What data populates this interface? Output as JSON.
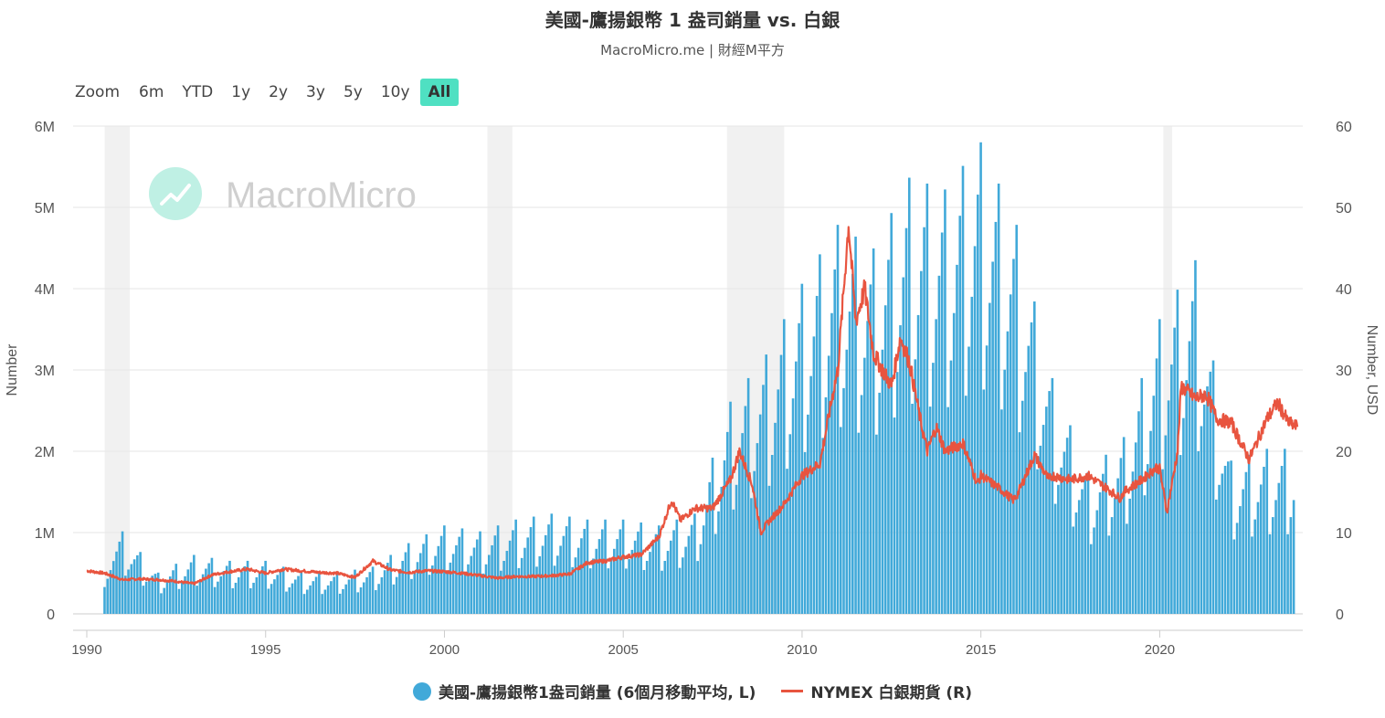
{
  "title": "美國-鷹揚銀幣 1 盎司銷量 vs. 白銀",
  "subtitle": "MacroMicro.me | 財經M平方",
  "watermark": "MacroMicro",
  "range_selector": {
    "zoom_label": "Zoom",
    "buttons": [
      "6m",
      "YTD",
      "1y",
      "2y",
      "3y",
      "5y",
      "10y",
      "All"
    ],
    "active": "All"
  },
  "chart_data": {
    "type": "bar+line",
    "x_ticks": [
      "1990",
      "1995",
      "2000",
      "2005",
      "2010",
      "2015",
      "2020"
    ],
    "xlim": [
      1990,
      2024
    ],
    "left_axis": {
      "label": "Number",
      "ticks": [
        "0",
        "1M",
        "2M",
        "3M",
        "4M",
        "5M",
        "6M"
      ],
      "range": [
        0,
        6000000
      ]
    },
    "right_axis": {
      "label": "Number, USD",
      "ticks": [
        "0",
        "10",
        "20",
        "30",
        "40",
        "50",
        "60"
      ],
      "range": [
        0,
        60
      ]
    },
    "recessions": [
      [
        1990.5,
        1991.2
      ],
      [
        2001.2,
        2001.9
      ],
      [
        2007.9,
        2009.5
      ],
      [
        2020.1,
        2020.35
      ]
    ],
    "series": [
      {
        "name": "美國-鷹揚銀幣1盎司銷量 (6個月移動平均, L)",
        "type": "bar",
        "color": "#41a9d9",
        "annual_sales": {
          "1990": 5,
          "1991": 7,
          "1992": 3.5,
          "1993": 5,
          "1994": 4.5,
          "1995": 4.5,
          "1996": 3.5,
          "1997": 3.5,
          "1998": 4,
          "1999": 6,
          "2000": 7.5,
          "2001": 7,
          "2002": 8,
          "2003": 8.5,
          "2004": 8,
          "2005": 8,
          "2006": 7.5,
          "2007": 8.5,
          "2008": 18,
          "2009": 22,
          "2010": 28,
          "2011": 33,
          "2012": 31,
          "2013": 37,
          "2014": 36,
          "2015": 40,
          "2016": 33,
          "2017": 20,
          "2018": 12,
          "2019": 15,
          "2020": 25,
          "2021": 30,
          "2022": 13,
          "2023": 14
        }
      },
      {
        "name": "NYMEX 白銀期貨 (R)",
        "type": "line",
        "color": "#e8543f",
        "points": [
          [
            1990.0,
            5.3
          ],
          [
            1990.5,
            5.0
          ],
          [
            1991.0,
            4.2
          ],
          [
            1991.5,
            4.3
          ],
          [
            1992.0,
            4.2
          ],
          [
            1992.5,
            4.0
          ],
          [
            1993.0,
            3.7
          ],
          [
            1993.5,
            4.8
          ],
          [
            1994.0,
            5.2
          ],
          [
            1994.5,
            5.5
          ],
          [
            1995.0,
            5.0
          ],
          [
            1995.5,
            5.5
          ],
          [
            1996.0,
            5.3
          ],
          [
            1996.5,
            5.1
          ],
          [
            1997.0,
            5.0
          ],
          [
            1997.5,
            4.5
          ],
          [
            1998.0,
            6.5
          ],
          [
            1998.5,
            5.4
          ],
          [
            1999.0,
            5.1
          ],
          [
            1999.5,
            5.3
          ],
          [
            2000.0,
            5.2
          ],
          [
            2000.5,
            5.0
          ],
          [
            2001.0,
            4.7
          ],
          [
            2001.5,
            4.4
          ],
          [
            2002.0,
            4.6
          ],
          [
            2002.5,
            4.6
          ],
          [
            2003.0,
            4.7
          ],
          [
            2003.5,
            4.9
          ],
          [
            2004.0,
            6.3
          ],
          [
            2004.5,
            6.5
          ],
          [
            2005.0,
            7.0
          ],
          [
            2005.5,
            7.3
          ],
          [
            2006.0,
            9.5
          ],
          [
            2006.35,
            14.0
          ],
          [
            2006.6,
            11.5
          ],
          [
            2007.0,
            13.0
          ],
          [
            2007.5,
            13.0
          ],
          [
            2008.0,
            16.5
          ],
          [
            2008.25,
            20.0
          ],
          [
            2008.6,
            16.0
          ],
          [
            2008.85,
            10.0
          ],
          [
            2009.0,
            11.0
          ],
          [
            2009.5,
            13.5
          ],
          [
            2010.0,
            17.0
          ],
          [
            2010.5,
            18.5
          ],
          [
            2010.9,
            28.0
          ],
          [
            2011.0,
            30.0
          ],
          [
            2011.3,
            48.0
          ],
          [
            2011.5,
            36.0
          ],
          [
            2011.75,
            40.0
          ],
          [
            2012.0,
            32.0
          ],
          [
            2012.5,
            28.0
          ],
          [
            2012.75,
            34.0
          ],
          [
            2013.0,
            31.0
          ],
          [
            2013.3,
            24.0
          ],
          [
            2013.5,
            20.0
          ],
          [
            2013.75,
            23.0
          ],
          [
            2014.0,
            20.0
          ],
          [
            2014.5,
            21.0
          ],
          [
            2014.9,
            16.0
          ],
          [
            2015.0,
            17.0
          ],
          [
            2015.5,
            15.5
          ],
          [
            2015.9,
            14.0
          ],
          [
            2016.0,
            14.5
          ],
          [
            2016.5,
            19.5
          ],
          [
            2016.9,
            16.5
          ],
          [
            2017.0,
            17.0
          ],
          [
            2017.5,
            16.5
          ],
          [
            2018.0,
            17.0
          ],
          [
            2018.5,
            15.5
          ],
          [
            2018.9,
            14.2
          ],
          [
            2019.0,
            15.0
          ],
          [
            2019.5,
            16.5
          ],
          [
            2019.9,
            18.0
          ],
          [
            2020.0,
            17.8
          ],
          [
            2020.2,
            12.5
          ],
          [
            2020.5,
            20.0
          ],
          [
            2020.6,
            28.0
          ],
          [
            2021.0,
            26.5
          ],
          [
            2021.3,
            27.0
          ],
          [
            2021.6,
            24.0
          ],
          [
            2022.0,
            23.5
          ],
          [
            2022.5,
            19.0
          ],
          [
            2022.9,
            23.0
          ],
          [
            2023.0,
            24.0
          ],
          [
            2023.3,
            26.0
          ],
          [
            2023.6,
            23.5
          ],
          [
            2023.85,
            23.0
          ]
        ]
      }
    ],
    "legend_position": "bottom"
  },
  "legend": {
    "bar_label": "美國-鷹揚銀幣1盎司銷量 (6個月移動平均, L)",
    "line_label": "NYMEX 白銀期貨 (R)"
  }
}
